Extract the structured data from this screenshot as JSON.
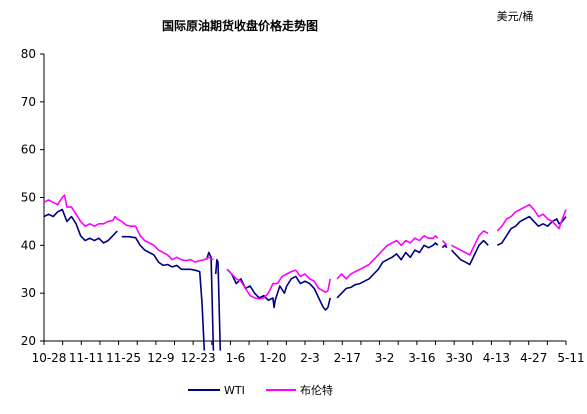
{
  "chart_data": {
    "type": "line",
    "title": "国际原油期货收盘价格走势图",
    "unit_label": "美元/桶",
    "ylim": [
      20,
      80
    ],
    "y_ticks": [
      20,
      30,
      40,
      50,
      60,
      70,
      80
    ],
    "x_ticks": [
      "10-28",
      "11-11",
      "11-25",
      "12-9",
      "12-23",
      "1-6",
      "1-20",
      "2-3",
      "2-17",
      "3-2",
      "3-16",
      "3-30",
      "4-13",
      "4-27",
      "5-11"
    ],
    "x_range": [
      0,
      195
    ],
    "grid": false,
    "legend_position": "bottom",
    "series": [
      {
        "name": "WTI",
        "color": "#000080",
        "points": [
          [
            0,
            46
          ],
          [
            2,
            46.5
          ],
          [
            4,
            46
          ],
          [
            6,
            47
          ],
          [
            8,
            47.5
          ],
          [
            10,
            45
          ],
          [
            12,
            46
          ],
          [
            14,
            44.5
          ],
          [
            16,
            42
          ],
          [
            18,
            41
          ],
          [
            20,
            41.5
          ],
          [
            22,
            41
          ],
          [
            24,
            41.5
          ],
          [
            26,
            40.5
          ],
          [
            28,
            41
          ],
          [
            30,
            42
          ],
          [
            32,
            43
          ],
          null,
          [
            34,
            41.8
          ],
          [
            37,
            41.8
          ],
          [
            40,
            41.6
          ],
          [
            42,
            40
          ],
          [
            44,
            39
          ],
          [
            46,
            38.5
          ],
          [
            48,
            38
          ],
          [
            50,
            36.5
          ],
          [
            52,
            35.8
          ],
          [
            54,
            36
          ],
          [
            56,
            35.5
          ],
          [
            58,
            35.8
          ],
          [
            60,
            35
          ],
          [
            62,
            35
          ],
          [
            64,
            35
          ],
          [
            66,
            34.8
          ],
          [
            68,
            34.5
          ],
          [
            69,
            28
          ],
          [
            70,
            18
          ],
          null,
          [
            71,
            37
          ],
          [
            72,
            38.5
          ],
          [
            73,
            37.5
          ],
          [
            74,
            18
          ],
          null,
          [
            75,
            34
          ],
          [
            75.5,
            37
          ],
          [
            76,
            36.5
          ],
          [
            77,
            18
          ],
          null,
          [
            80,
            35
          ],
          [
            82,
            34
          ],
          [
            84,
            32
          ],
          [
            86,
            33
          ],
          [
            88,
            31
          ],
          [
            90,
            31.5
          ],
          [
            92,
            30
          ],
          [
            94,
            29
          ],
          [
            96,
            29.5
          ],
          [
            98,
            28.5
          ],
          [
            100,
            29
          ],
          [
            100.5,
            27
          ],
          [
            101,
            28.5
          ],
          [
            103,
            31.5
          ],
          [
            105,
            30
          ],
          [
            106,
            31.5
          ],
          [
            108,
            33
          ],
          [
            110,
            33.5
          ],
          [
            112,
            32
          ],
          [
            114,
            32.5
          ],
          [
            116,
            32
          ],
          [
            118,
            31
          ],
          [
            120,
            29
          ],
          [
            122,
            27
          ],
          [
            123,
            26.5
          ],
          [
            124,
            27
          ],
          [
            125,
            29
          ],
          null,
          [
            128,
            29
          ],
          [
            130,
            30
          ],
          [
            132,
            31
          ],
          [
            134,
            31.2
          ],
          [
            136,
            31.8
          ],
          [
            138,
            32
          ],
          [
            140,
            32.5
          ],
          [
            142,
            33
          ],
          [
            144,
            34
          ],
          [
            146,
            35
          ],
          [
            148,
            36.5
          ],
          [
            150,
            37
          ],
          [
            152,
            37.5
          ],
          [
            154,
            38.2
          ],
          [
            156,
            37
          ],
          [
            158,
            38.5
          ],
          [
            160,
            37.5
          ],
          [
            162,
            39
          ],
          [
            164,
            38.5
          ],
          [
            166,
            40
          ],
          [
            168,
            39.5
          ],
          [
            170,
            40
          ],
          [
            171,
            40.5
          ],
          [
            172,
            40
          ],
          null,
          [
            174,
            39.5
          ],
          [
            175,
            40
          ],
          [
            176,
            39.5
          ],
          null,
          [
            178,
            39
          ],
          [
            180,
            38
          ],
          [
            182,
            37
          ],
          [
            184,
            36.5
          ],
          [
            186,
            36
          ],
          [
            188,
            38
          ],
          [
            190,
            40
          ],
          [
            192,
            41
          ],
          [
            194,
            40
          ],
          null,
          [
            198,
            40
          ],
          [
            200,
            40.5
          ],
          [
            202,
            42
          ],
          [
            204,
            43.5
          ],
          [
            206,
            44
          ],
          [
            208,
            45
          ],
          [
            210,
            45.5
          ],
          [
            212,
            46
          ],
          [
            214,
            45
          ],
          [
            216,
            44
          ],
          [
            218,
            44.5
          ],
          [
            220,
            44
          ],
          [
            222,
            45
          ],
          [
            224,
            45.5
          ],
          [
            225,
            44.5
          ],
          [
            226,
            44.8
          ],
          [
            228,
            46
          ]
        ]
      },
      {
        "name": "布伦特",
        "color": "#ff00ff",
        "points": [
          [
            0,
            49
          ],
          [
            2,
            49.5
          ],
          [
            4,
            49
          ],
          [
            6,
            48.5
          ],
          [
            8,
            50
          ],
          [
            9,
            50.5
          ],
          [
            10,
            48
          ],
          [
            12,
            48
          ],
          [
            14,
            46.5
          ],
          [
            16,
            45
          ],
          [
            18,
            44
          ],
          [
            20,
            44.5
          ],
          [
            22,
            44
          ],
          [
            24,
            44.5
          ],
          [
            26,
            44.5
          ],
          [
            28,
            45
          ],
          [
            30,
            45.2
          ],
          [
            31,
            46
          ],
          [
            32,
            45.5
          ],
          [
            34,
            45
          ],
          [
            36,
            44.2
          ],
          [
            38,
            44
          ],
          [
            40,
            44
          ],
          [
            42,
            42
          ],
          [
            44,
            41
          ],
          [
            46,
            40.5
          ],
          [
            48,
            40
          ],
          [
            50,
            39
          ],
          [
            52,
            38.5
          ],
          [
            54,
            38
          ],
          [
            56,
            37
          ],
          [
            58,
            37.5
          ],
          [
            60,
            37
          ],
          [
            62,
            36.8
          ],
          [
            64,
            37
          ],
          [
            66,
            36.5
          ],
          [
            68,
            36.8
          ],
          [
            70,
            37
          ],
          [
            72,
            37.5
          ],
          [
            74,
            37
          ],
          null,
          [
            80,
            35
          ],
          [
            82,
            34
          ],
          [
            84,
            33
          ],
          [
            86,
            32.5
          ],
          [
            88,
            31
          ],
          [
            90,
            29.5
          ],
          [
            92,
            29
          ],
          [
            94,
            28.8
          ],
          [
            96,
            29
          ],
          [
            98,
            30
          ],
          [
            100,
            32
          ],
          [
            102,
            32
          ],
          [
            104,
            33.5
          ],
          [
            106,
            34
          ],
          [
            108,
            34.5
          ],
          [
            110,
            34.8
          ],
          [
            112,
            33.5
          ],
          [
            114,
            34
          ],
          [
            116,
            33
          ],
          [
            118,
            32.5
          ],
          [
            120,
            31
          ],
          [
            122,
            30.5
          ],
          [
            123,
            30.2
          ],
          [
            124,
            30.5
          ],
          [
            125,
            33
          ],
          null,
          [
            128,
            33
          ],
          [
            130,
            34
          ],
          [
            132,
            33
          ],
          [
            134,
            34
          ],
          [
            136,
            34.5
          ],
          [
            138,
            35
          ],
          [
            140,
            35.5
          ],
          [
            142,
            36
          ],
          [
            144,
            37
          ],
          [
            146,
            38
          ],
          [
            148,
            39
          ],
          [
            150,
            40
          ],
          [
            152,
            40.5
          ],
          [
            154,
            41
          ],
          [
            156,
            40
          ],
          [
            158,
            41
          ],
          [
            160,
            40.5
          ],
          [
            162,
            41.5
          ],
          [
            164,
            41
          ],
          [
            166,
            42
          ],
          [
            168,
            41.5
          ],
          [
            170,
            41.5
          ],
          [
            171,
            42
          ],
          [
            172,
            41.5
          ],
          null,
          [
            174,
            41
          ],
          [
            175,
            40.5
          ],
          [
            176,
            40
          ],
          null,
          [
            178,
            40
          ],
          [
            180,
            39.5
          ],
          [
            182,
            39
          ],
          [
            184,
            38.5
          ],
          [
            186,
            38
          ],
          [
            188,
            40
          ],
          [
            190,
            42
          ],
          [
            192,
            43
          ],
          [
            194,
            42.5
          ],
          null,
          [
            198,
            43
          ],
          [
            200,
            44
          ],
          [
            202,
            45.5
          ],
          [
            204,
            46
          ],
          [
            206,
            47
          ],
          [
            208,
            47.5
          ],
          [
            210,
            48
          ],
          [
            212,
            48.5
          ],
          [
            214,
            47.5
          ],
          [
            216,
            46
          ],
          [
            218,
            46.5
          ],
          [
            220,
            45.5
          ],
          [
            222,
            45
          ],
          [
            224,
            44
          ],
          [
            225,
            43.5
          ],
          [
            226,
            45
          ],
          [
            228,
            47.5
          ]
        ]
      }
    ]
  },
  "legend": {
    "wti_label": "WTI",
    "brent_label": "布伦特"
  }
}
